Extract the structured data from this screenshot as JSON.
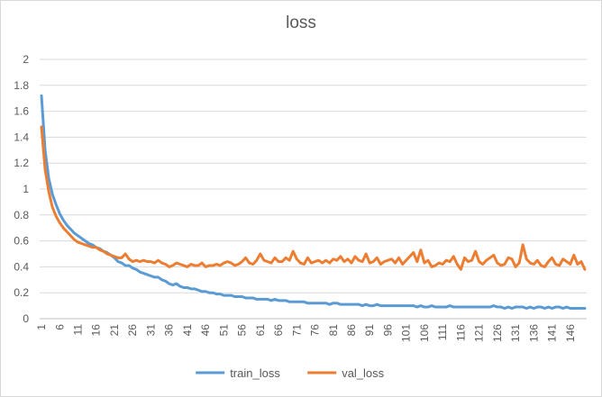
{
  "chart_data": {
    "type": "line",
    "title": "loss",
    "xlabel": "",
    "ylabel": "",
    "ylim": [
      0,
      2
    ],
    "yticks": [
      "0",
      "0.2",
      "0.4",
      "0.6",
      "0.8",
      "1",
      "1.2",
      "1.4",
      "1.6",
      "1.8",
      "2"
    ],
    "x_start": 1,
    "x_end": 150,
    "xticks": [
      1,
      6,
      11,
      16,
      21,
      26,
      31,
      36,
      41,
      46,
      51,
      56,
      61,
      66,
      71,
      76,
      81,
      86,
      91,
      96,
      101,
      106,
      111,
      116,
      121,
      126,
      131,
      136,
      141,
      146
    ],
    "grid": true,
    "legend_position": "bottom",
    "series": [
      {
        "name": "train_loss",
        "color": "#5b9bd5",
        "values": [
          1.72,
          1.3,
          1.08,
          0.96,
          0.88,
          0.81,
          0.76,
          0.72,
          0.69,
          0.66,
          0.64,
          0.62,
          0.6,
          0.58,
          0.57,
          0.55,
          0.54,
          0.52,
          0.51,
          0.49,
          0.47,
          0.44,
          0.43,
          0.41,
          0.41,
          0.39,
          0.38,
          0.36,
          0.35,
          0.34,
          0.33,
          0.32,
          0.32,
          0.3,
          0.29,
          0.27,
          0.26,
          0.27,
          0.25,
          0.24,
          0.24,
          0.23,
          0.23,
          0.22,
          0.21,
          0.21,
          0.2,
          0.2,
          0.19,
          0.19,
          0.18,
          0.18,
          0.18,
          0.17,
          0.17,
          0.17,
          0.16,
          0.16,
          0.16,
          0.15,
          0.15,
          0.15,
          0.15,
          0.14,
          0.15,
          0.14,
          0.14,
          0.14,
          0.13,
          0.13,
          0.13,
          0.13,
          0.13,
          0.12,
          0.12,
          0.12,
          0.12,
          0.12,
          0.12,
          0.11,
          0.12,
          0.12,
          0.11,
          0.11,
          0.11,
          0.11,
          0.11,
          0.11,
          0.1,
          0.11,
          0.1,
          0.1,
          0.11,
          0.1,
          0.1,
          0.1,
          0.1,
          0.1,
          0.1,
          0.1,
          0.1,
          0.1,
          0.1,
          0.09,
          0.1,
          0.09,
          0.09,
          0.1,
          0.09,
          0.09,
          0.09,
          0.09,
          0.1,
          0.09,
          0.09,
          0.09,
          0.09,
          0.09,
          0.09,
          0.09,
          0.09,
          0.09,
          0.09,
          0.09,
          0.1,
          0.09,
          0.09,
          0.08,
          0.09,
          0.08,
          0.09,
          0.09,
          0.09,
          0.08,
          0.09,
          0.08,
          0.09,
          0.09,
          0.08,
          0.09,
          0.08,
          0.09,
          0.09,
          0.08,
          0.09,
          0.08,
          0.08,
          0.08,
          0.08,
          0.08
        ]
      },
      {
        "name": "val_loss",
        "color": "#ed7d31",
        "values": [
          1.48,
          1.15,
          0.98,
          0.86,
          0.79,
          0.74,
          0.7,
          0.67,
          0.64,
          0.61,
          0.59,
          0.58,
          0.57,
          0.56,
          0.55,
          0.55,
          0.53,
          0.52,
          0.5,
          0.49,
          0.48,
          0.47,
          0.47,
          0.5,
          0.46,
          0.44,
          0.45,
          0.44,
          0.45,
          0.44,
          0.44,
          0.43,
          0.45,
          0.43,
          0.42,
          0.4,
          0.41,
          0.43,
          0.42,
          0.41,
          0.4,
          0.42,
          0.41,
          0.41,
          0.43,
          0.4,
          0.41,
          0.41,
          0.42,
          0.41,
          0.43,
          0.44,
          0.43,
          0.41,
          0.42,
          0.44,
          0.47,
          0.43,
          0.42,
          0.45,
          0.5,
          0.45,
          0.44,
          0.43,
          0.47,
          0.44,
          0.44,
          0.47,
          0.45,
          0.52,
          0.46,
          0.43,
          0.42,
          0.47,
          0.43,
          0.44,
          0.45,
          0.43,
          0.45,
          0.43,
          0.46,
          0.45,
          0.48,
          0.44,
          0.46,
          0.43,
          0.48,
          0.45,
          0.44,
          0.5,
          0.43,
          0.44,
          0.47,
          0.42,
          0.44,
          0.45,
          0.46,
          0.43,
          0.47,
          0.42,
          0.45,
          0.48,
          0.51,
          0.44,
          0.53,
          0.43,
          0.45,
          0.4,
          0.41,
          0.43,
          0.42,
          0.45,
          0.44,
          0.48,
          0.42,
          0.38,
          0.47,
          0.44,
          0.45,
          0.52,
          0.44,
          0.42,
          0.45,
          0.47,
          0.49,
          0.43,
          0.41,
          0.42,
          0.47,
          0.46,
          0.4,
          0.43,
          0.57,
          0.46,
          0.43,
          0.42,
          0.45,
          0.41,
          0.4,
          0.44,
          0.47,
          0.42,
          0.41,
          0.46,
          0.44,
          0.42,
          0.49,
          0.42,
          0.44,
          0.38
        ]
      }
    ]
  }
}
